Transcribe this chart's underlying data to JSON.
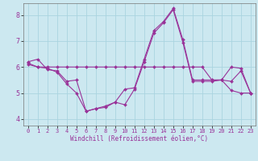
{
  "xlabel": "Windchill (Refroidissement éolien,°C)",
  "ylabel": "",
  "background_color": "#cce8f0",
  "grid_color": "#aad4e0",
  "line_color": "#993399",
  "xlim": [
    -0.5,
    23.5
  ],
  "ylim": [
    3.75,
    8.45
  ],
  "yticks": [
    4,
    5,
    6,
    7,
    8
  ],
  "xticks": [
    0,
    1,
    2,
    3,
    4,
    5,
    6,
    7,
    8,
    9,
    10,
    11,
    12,
    13,
    14,
    15,
    16,
    17,
    18,
    19,
    20,
    21,
    22,
    23
  ],
  "series": [
    [
      6.2,
      6.3,
      5.9,
      5.85,
      5.45,
      5.5,
      4.3,
      4.4,
      4.5,
      4.65,
      5.15,
      5.2,
      6.3,
      7.4,
      7.75,
      8.25,
      7.05,
      5.5,
      5.5,
      5.5,
      5.5,
      5.1,
      5.0,
      5.0
    ],
    [
      6.15,
      6.0,
      5.95,
      5.8,
      5.35,
      5.0,
      4.3,
      4.4,
      4.45,
      4.65,
      4.55,
      5.15,
      6.2,
      7.3,
      7.7,
      8.2,
      6.95,
      5.45,
      5.45,
      5.45,
      5.5,
      5.45,
      5.85,
      5.0
    ],
    [
      6.1,
      6.0,
      6.0,
      6.0,
      6.0,
      6.0,
      6.0,
      6.0,
      6.0,
      6.0,
      6.0,
      6.0,
      6.0,
      6.0,
      6.0,
      6.0,
      6.0,
      6.0,
      6.0,
      5.5,
      5.5,
      6.0,
      5.95,
      5.0
    ]
  ],
  "marker": "D",
  "markersize": 2.0,
  "linewidth": 0.8,
  "tick_fontsize_x": 5,
  "tick_fontsize_y": 6,
  "xlabel_fontsize": 5.5,
  "xlabel_color": "#993399"
}
